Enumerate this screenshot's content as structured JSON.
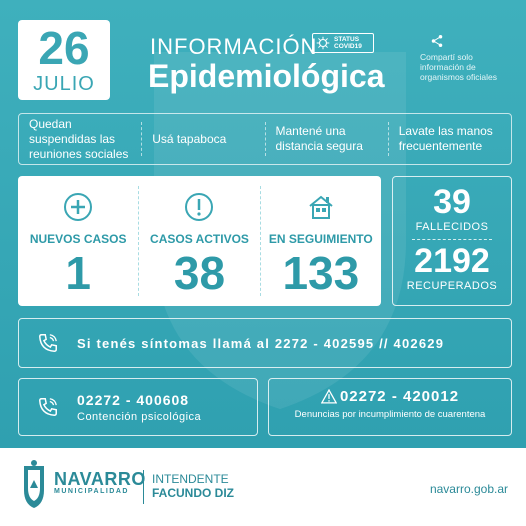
{
  "date": {
    "day": "26",
    "month": "JULIO"
  },
  "header": {
    "title_line1": "INFORMACIÓN",
    "title_line2": "Epidemiológica",
    "status_line1": "STATUS",
    "status_line2": "COVID19",
    "share_text": "Compartí solo información de organismos oficiales"
  },
  "advice": [
    "Quedan suspendidas las reuniones sociales",
    "Usá tapaboca",
    "Mantené una distancia segura",
    "Lavate las manos frecuentemente"
  ],
  "cases": {
    "new": {
      "label": "NUEVOS CASOS",
      "value": "1"
    },
    "active": {
      "label": "CASOS ACTIVOS",
      "value": "38"
    },
    "monitoring": {
      "label": "EN SEGUIMIENTO",
      "value": "133"
    }
  },
  "totals": {
    "deaths_value": "39",
    "deaths_label": "FALLECIDOS",
    "recovered_value": "2192",
    "recovered_label": "RECUPERADOS"
  },
  "contact": {
    "symptoms": "Si tenés síntomas llamá al 2272 - 402595 // 402629",
    "psych_number": "02272 - 400608",
    "psych_label": "Contención psicológica",
    "report_number": "02272 - 420012",
    "report_label": "Denuncias por incumplimiento de cuarentena"
  },
  "footer": {
    "brand": "NAVARRO",
    "brand_sub": "MUNICIPALIDAD",
    "role": "INTENDENTE",
    "name": "FACUNDO DIZ",
    "website": "navarro.gob.ar"
  },
  "colors": {
    "teal": "#3aaab8",
    "white": "#ffffff",
    "dark_teal": "#2b8a98"
  },
  "icons": [
    "plus-circle-icon",
    "exclamation-circle-icon",
    "house-icon",
    "phone-icon",
    "warning-icon",
    "share-icon",
    "virus-icon"
  ]
}
